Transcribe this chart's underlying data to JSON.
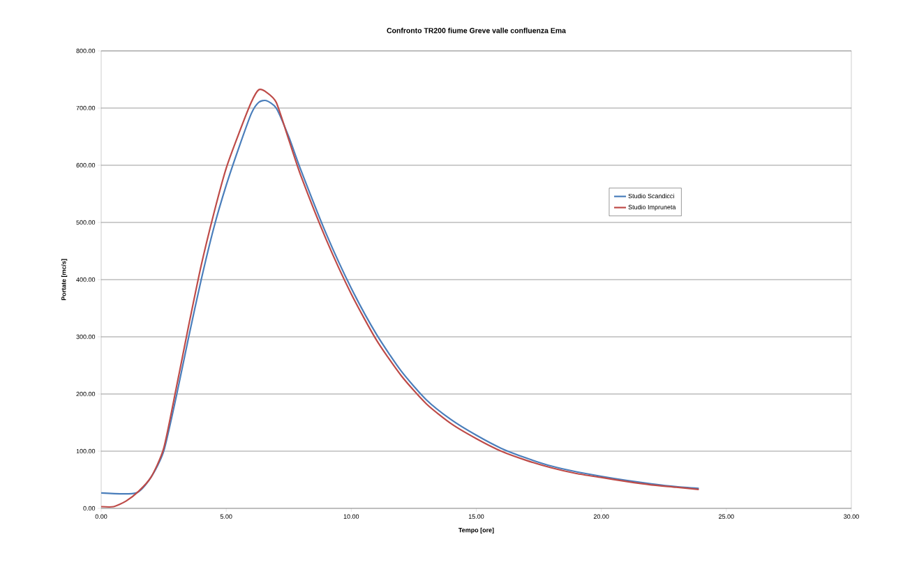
{
  "chart_data": {
    "type": "line",
    "title": "Confronto TR200 fiume Greve valle confluenza Ema",
    "xlabel": "Tempo [ore]",
    "ylabel": "Portate [mc/s]",
    "xlim": [
      0,
      30
    ],
    "ylim": [
      0,
      800
    ],
    "xticks": [
      {
        "value": 0,
        "label": "0.00"
      },
      {
        "value": 5,
        "label": "5.00"
      },
      {
        "value": 10,
        "label": "10.00"
      },
      {
        "value": 15,
        "label": "15.00"
      },
      {
        "value": 20,
        "label": "20.00"
      },
      {
        "value": 25,
        "label": "25.00"
      },
      {
        "value": 30,
        "label": "30.00"
      }
    ],
    "yticks": [
      {
        "value": 0,
        "label": "0.00"
      },
      {
        "value": 100,
        "label": "100.00"
      },
      {
        "value": 200,
        "label": "200.00"
      },
      {
        "value": 300,
        "label": "300.00"
      },
      {
        "value": 400,
        "label": "400.00"
      },
      {
        "value": 500,
        "label": "500.00"
      },
      {
        "value": 600,
        "label": "600.00"
      },
      {
        "value": 700,
        "label": "700.00"
      },
      {
        "value": 800,
        "label": "800.00"
      }
    ],
    "grid": "y",
    "legend": "right",
    "marker": "none",
    "line_style": "solid",
    "series": [
      {
        "name": "Studio Scandicci",
        "color": "#4a7ebb",
        "x": [
          0,
          1.4,
          2.0,
          2.5,
          3.0,
          3.5,
          4.0,
          4.5,
          5.0,
          5.5,
          6.0,
          6.3,
          6.6,
          7.0,
          7.5,
          8.0,
          9.0,
          10.0,
          11.0,
          12.0,
          13.0,
          14.0,
          15.0,
          16.0,
          17.0,
          18.0,
          19.0,
          20.0,
          21.0,
          22.0,
          23.0,
          23.9
        ],
        "values": [
          27,
          27,
          55,
          100,
          195,
          300,
          400,
          490,
          565,
          630,
          690,
          710,
          713,
          700,
          650,
          590,
          480,
          385,
          305,
          240,
          190,
          155,
          128,
          105,
          88,
          74,
          64,
          56,
          49,
          43,
          38,
          35
        ]
      },
      {
        "name": "Studio Impruneta",
        "color": "#be4b48",
        "x": [
          0,
          0.5,
          1.0,
          1.5,
          2.0,
          2.5,
          3.0,
          3.5,
          4.0,
          4.5,
          5.0,
          5.5,
          6.0,
          6.3,
          6.6,
          7.0,
          7.5,
          8.0,
          9.0,
          10.0,
          11.0,
          12.0,
          13.0,
          14.0,
          15.0,
          16.0,
          17.0,
          18.0,
          19.0,
          20.0,
          21.0,
          22.0,
          23.0,
          23.9
        ],
        "values": [
          3,
          3,
          13,
          30,
          55,
          105,
          210,
          320,
          425,
          515,
          595,
          655,
          710,
          732,
          728,
          710,
          645,
          580,
          470,
          375,
          295,
          232,
          183,
          148,
          122,
          100,
          84,
          71,
          61,
          54,
          47,
          41,
          37,
          33
        ]
      }
    ]
  }
}
